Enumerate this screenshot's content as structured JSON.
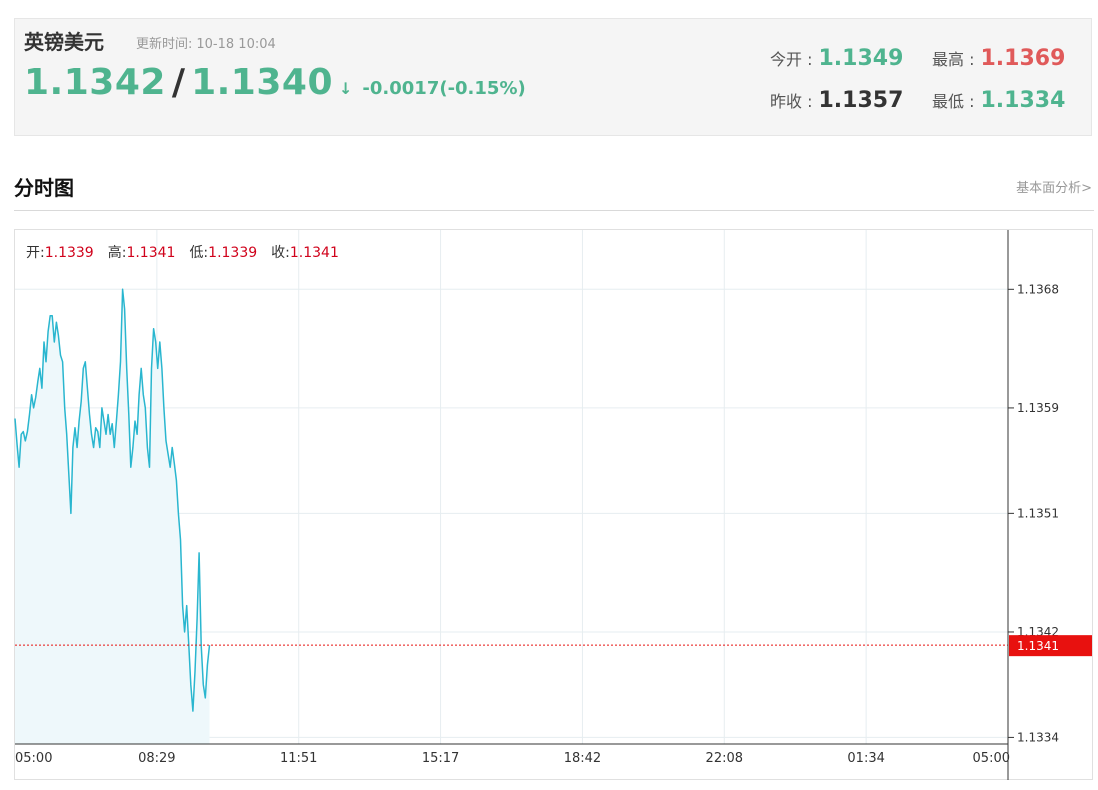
{
  "header": {
    "pair_name": "英镑美元",
    "update_label": "更新时间:",
    "update_time": "10-18 10:04",
    "bid": "1.1342",
    "separator": "/",
    "ask": "1.1340",
    "direction_icon": "down-arrow-icon",
    "change": "-0.0017(-0.15%)",
    "open_label": "今开 :",
    "open": "1.1349",
    "high_label": "最高 :",
    "high": "1.1369",
    "prev_close_label": "昨收 :",
    "prev_close": "1.1357",
    "low_label": "最低 :",
    "low": "1.1334"
  },
  "section": {
    "title": "分时图",
    "link": "基本面分析>"
  },
  "ohlc": {
    "open_label": "开:",
    "open": "1.1339",
    "high_label": "高:",
    "high": "1.1341",
    "low_label": "低:",
    "low": "1.1339",
    "close_label": "收:",
    "close": "1.1341"
  },
  "colors": {
    "line": "#29b6cf",
    "area": "#eef8fb",
    "up": "#e05a5a",
    "down": "#4fb48f",
    "last_price_marker": "#e8110f"
  },
  "chart_data": {
    "type": "area",
    "title": "",
    "xlabel": "",
    "ylabel": "",
    "x_ticks": [
      "05:00",
      "08:29",
      "11:51",
      "15:17",
      "18:42",
      "22:08",
      "01:34",
      "05:00"
    ],
    "y_ticks": [
      1.1368,
      1.1359,
      1.1351,
      1.1342,
      1.1334
    ],
    "ylim": [
      1.13335,
      1.13725
    ],
    "x_range_hours": 24,
    "grid": true,
    "last_price": 1.1341,
    "last_price_label": "1.1341",
    "series": [
      {
        "values": [
          [
            0.0,
            1.13582
          ],
          [
            0.05,
            1.13562
          ],
          [
            0.1,
            1.13545
          ],
          [
            0.15,
            1.1357
          ],
          [
            0.2,
            1.13572
          ],
          [
            0.25,
            1.13565
          ],
          [
            0.3,
            1.13572
          ],
          [
            0.35,
            1.13585
          ],
          [
            0.4,
            1.136
          ],
          [
            0.45,
            1.1359
          ],
          [
            0.5,
            1.13598
          ],
          [
            0.55,
            1.1361
          ],
          [
            0.6,
            1.1362
          ],
          [
            0.65,
            1.13605
          ],
          [
            0.7,
            1.1364
          ],
          [
            0.75,
            1.13625
          ],
          [
            0.8,
            1.13648
          ],
          [
            0.85,
            1.1366
          ],
          [
            0.9,
            1.1366
          ],
          [
            0.95,
            1.1364
          ],
          [
            1.0,
            1.13655
          ],
          [
            1.05,
            1.13645
          ],
          [
            1.1,
            1.1363
          ],
          [
            1.15,
            1.13625
          ],
          [
            1.2,
            1.1359
          ],
          [
            1.25,
            1.1357
          ],
          [
            1.3,
            1.1354
          ],
          [
            1.35,
            1.1351
          ],
          [
            1.4,
            1.1356
          ],
          [
            1.45,
            1.13575
          ],
          [
            1.5,
            1.1356
          ],
          [
            1.55,
            1.1358
          ],
          [
            1.6,
            1.13595
          ],
          [
            1.65,
            1.1362
          ],
          [
            1.7,
            1.13625
          ],
          [
            1.75,
            1.13605
          ],
          [
            1.8,
            1.13585
          ],
          [
            1.85,
            1.1357
          ],
          [
            1.9,
            1.1356
          ],
          [
            1.95,
            1.13575
          ],
          [
            2.0,
            1.13572
          ],
          [
            2.05,
            1.1356
          ],
          [
            2.1,
            1.1359
          ],
          [
            2.15,
            1.1358
          ],
          [
            2.2,
            1.1357
          ],
          [
            2.25,
            1.13585
          ],
          [
            2.3,
            1.1357
          ],
          [
            2.35,
            1.13578
          ],
          [
            2.4,
            1.1356
          ],
          [
            2.45,
            1.1358
          ],
          [
            2.5,
            1.136
          ],
          [
            2.55,
            1.13625
          ],
          [
            2.6,
            1.1368
          ],
          [
            2.65,
            1.13665
          ],
          [
            2.7,
            1.1362
          ],
          [
            2.75,
            1.13585
          ],
          [
            2.8,
            1.13545
          ],
          [
            2.85,
            1.1356
          ],
          [
            2.9,
            1.1358
          ],
          [
            2.95,
            1.1357
          ],
          [
            3.0,
            1.136
          ],
          [
            3.05,
            1.1362
          ],
          [
            3.1,
            1.136
          ],
          [
            3.15,
            1.1359
          ],
          [
            3.2,
            1.1356
          ],
          [
            3.25,
            1.13545
          ],
          [
            3.3,
            1.1362
          ],
          [
            3.35,
            1.1365
          ],
          [
            3.4,
            1.1364
          ],
          [
            3.45,
            1.1362
          ],
          [
            3.5,
            1.1364
          ],
          [
            3.55,
            1.1362
          ],
          [
            3.6,
            1.1359
          ],
          [
            3.65,
            1.13565
          ],
          [
            3.7,
            1.13555
          ],
          [
            3.75,
            1.13545
          ],
          [
            3.8,
            1.1356
          ],
          [
            3.85,
            1.13548
          ],
          [
            3.9,
            1.13535
          ],
          [
            3.95,
            1.1351
          ],
          [
            4.0,
            1.1349
          ],
          [
            4.05,
            1.1344
          ],
          [
            4.1,
            1.1342
          ],
          [
            4.15,
            1.1344
          ],
          [
            4.2,
            1.1341
          ],
          [
            4.25,
            1.1338
          ],
          [
            4.3,
            1.1336
          ],
          [
            4.35,
            1.1339
          ],
          [
            4.4,
            1.1343
          ],
          [
            4.45,
            1.1348
          ],
          [
            4.5,
            1.1341
          ],
          [
            4.55,
            1.1338
          ],
          [
            4.6,
            1.1337
          ],
          [
            4.65,
            1.13395
          ],
          [
            4.7,
            1.1341
          ]
        ]
      }
    ]
  }
}
